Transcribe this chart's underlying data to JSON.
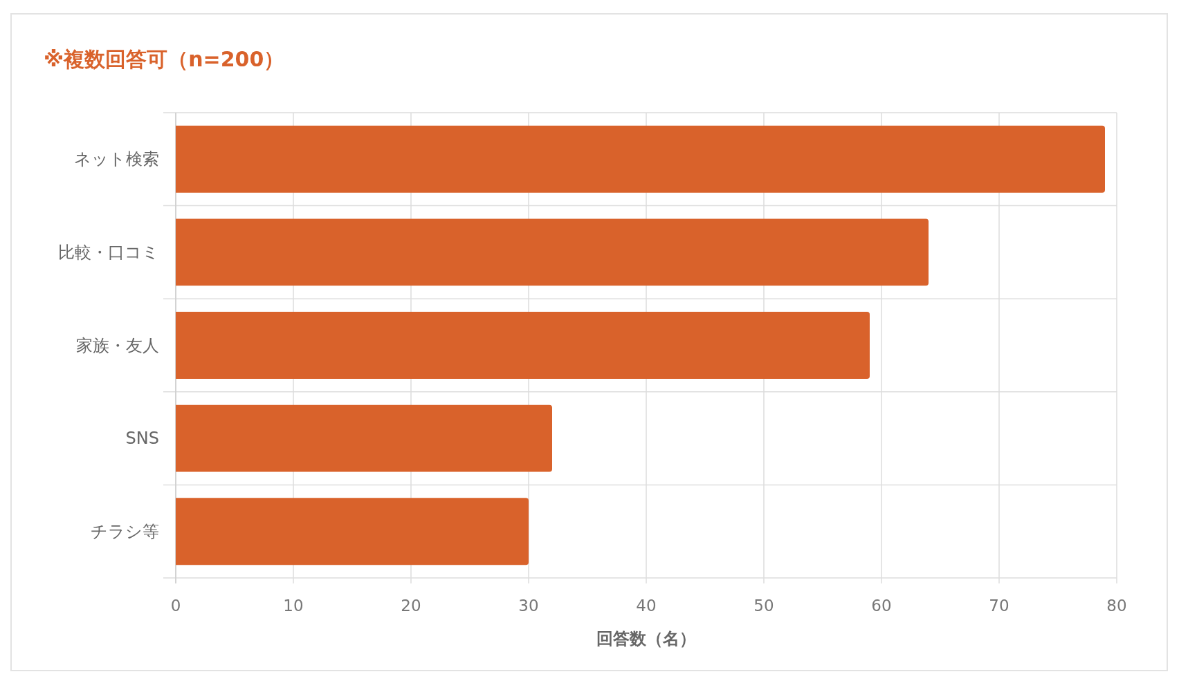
{
  "chart_data": {
    "type": "bar",
    "orientation": "horizontal",
    "title": "※複数回答可（n=200）",
    "xlabel": "回答数（名）",
    "categories": [
      "ネット検索",
      "比較・口コミ",
      "家族・友人",
      "SNS",
      "チラシ等"
    ],
    "values": [
      79,
      64,
      59,
      32,
      30
    ],
    "color": "#d9622b",
    "xlim": [
      0,
      80
    ],
    "xticks": [
      0,
      10,
      20,
      30,
      40,
      50,
      60,
      70,
      80
    ],
    "grid": true
  }
}
